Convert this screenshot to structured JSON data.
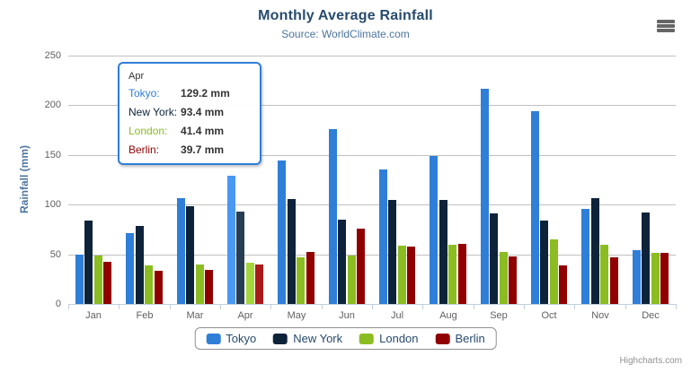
{
  "chart": {
    "title": "Monthly Average Rainfall",
    "subtitle": "Source: WorldClimate.com",
    "credits": "Highcharts.com"
  },
  "colors": {
    "title": "#274b6d",
    "subtitle": "#4d759e",
    "axis_title": "#4d759e",
    "axis_labels": "#606060",
    "gridline": "#c0c0c0",
    "axis_line": "#c0d0e0",
    "legend_border": "#909090",
    "legend_text": "#274b6d",
    "credits_text": "#909090",
    "menu_icon": "#666666"
  },
  "chart_data": {
    "type": "bar",
    "title": "Monthly Average Rainfall",
    "subtitle": "Source: WorldClimate.com",
    "xlabel": "",
    "ylabel": "Rainfall (mm)",
    "ylim": [
      0,
      250
    ],
    "ytick_interval": 50,
    "grid": true,
    "legend_position": "bottom",
    "categories": [
      "Jan",
      "Feb",
      "Mar",
      "Apr",
      "May",
      "Jun",
      "Jul",
      "Aug",
      "Sep",
      "Oct",
      "Nov",
      "Dec"
    ],
    "series": [
      {
        "name": "Tokyo",
        "color": "#2f7ed8",
        "hover_color": "#4998f2",
        "values": [
          49.9,
          71.5,
          106.4,
          129.2,
          144.0,
          176.0,
          135.6,
          148.5,
          216.4,
          194.1,
          95.6,
          54.4
        ]
      },
      {
        "name": "New York",
        "color": "#0d233a",
        "hover_color": "#273d54",
        "values": [
          83.6,
          78.8,
          98.5,
          93.4,
          106.0,
          84.5,
          105.0,
          104.3,
          91.2,
          83.5,
          106.6,
          92.3
        ]
      },
      {
        "name": "London",
        "color": "#8bbc21",
        "hover_color": "#a5d63b",
        "values": [
          48.9,
          38.8,
          39.3,
          41.4,
          47.0,
          48.3,
          59.0,
          59.6,
          52.4,
          65.2,
          59.3,
          51.2
        ]
      },
      {
        "name": "Berlin",
        "color": "#910000",
        "hover_color": "#ab1a1a",
        "values": [
          42.4,
          33.2,
          34.5,
          39.7,
          52.6,
          75.5,
          57.4,
          60.4,
          47.6,
          39.1,
          46.8,
          51.1
        ]
      }
    ],
    "highlighted_category": "Apr"
  },
  "tooltip": {
    "header": "Apr",
    "border_color": "#2f7ed8",
    "rows": [
      {
        "label": "Tokyo:",
        "value": "129.2 mm",
        "color": "#2f7ed8"
      },
      {
        "label": "New York:",
        "value": "93.4 mm",
        "color": "#0d233a"
      },
      {
        "label": "London:",
        "value": "41.4 mm",
        "color": "#8bbc21"
      },
      {
        "label": "Berlin:",
        "value": "39.7 mm",
        "color": "#910000"
      }
    ]
  }
}
